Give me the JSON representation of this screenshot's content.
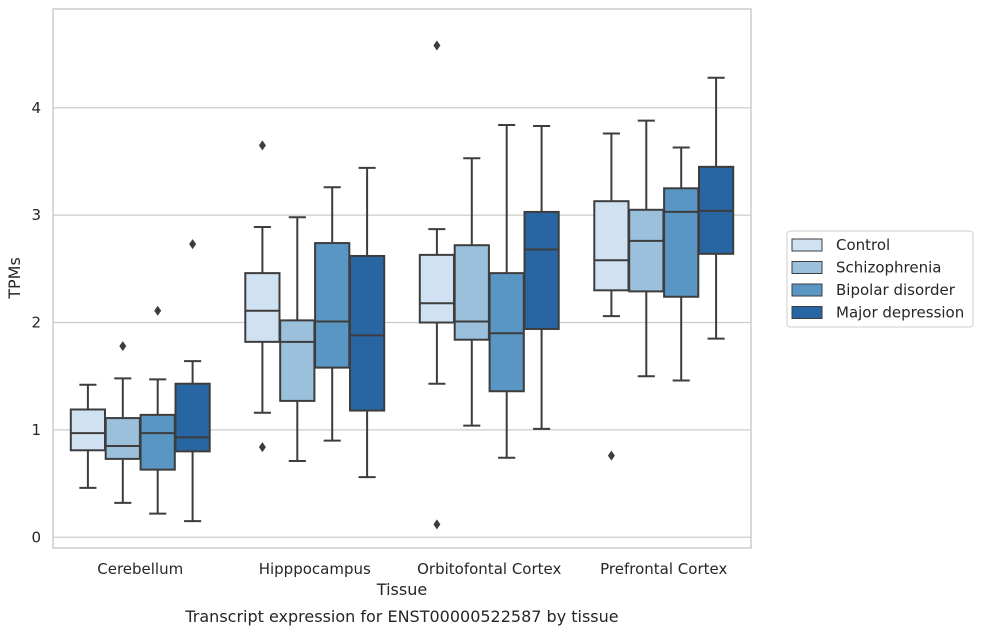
{
  "chart_data": {
    "type": "box",
    "caption": "Transcript expression for ENST00000522587 by tissue",
    "xlabel": "Tissue",
    "ylabel": "TPMs",
    "ylim": [
      -0.1,
      4.92
    ],
    "yticks": [
      0,
      1,
      2,
      3,
      4
    ],
    "grid": "horizontal",
    "legend_position": "right",
    "categories": [
      "Cerebellum",
      "Hipppocampus",
      "Orbitofontal Cortex",
      "Prefrontal Cortex"
    ],
    "series": [
      {
        "name": "Control",
        "color": "#d0e1f2",
        "boxes": [
          {
            "whislo": 0.46,
            "q1": 0.81,
            "med": 0.97,
            "q3": 1.19,
            "whishi": 1.42,
            "fliers": []
          },
          {
            "whislo": 1.16,
            "q1": 1.82,
            "med": 2.11,
            "q3": 2.46,
            "whishi": 2.89,
            "fliers": [
              3.65,
              0.84
            ]
          },
          {
            "whislo": 1.43,
            "q1": 2.0,
            "med": 2.18,
            "q3": 2.63,
            "whishi": 2.87,
            "fliers": [
              4.58,
              0.12
            ]
          },
          {
            "whislo": 2.06,
            "q1": 2.3,
            "med": 2.58,
            "q3": 3.13,
            "whishi": 3.76,
            "fliers": [
              0.76
            ]
          }
        ]
      },
      {
        "name": "Schizophrenia",
        "color": "#9ac0dc",
        "boxes": [
          {
            "whislo": 0.32,
            "q1": 0.73,
            "med": 0.85,
            "q3": 1.11,
            "whishi": 1.48,
            "fliers": [
              1.78
            ]
          },
          {
            "whislo": 0.71,
            "q1": 1.27,
            "med": 1.82,
            "q3": 2.02,
            "whishi": 2.98,
            "fliers": []
          },
          {
            "whislo": 1.04,
            "q1": 1.84,
            "med": 2.01,
            "q3": 2.72,
            "whishi": 3.53,
            "fliers": []
          },
          {
            "whislo": 1.5,
            "q1": 2.29,
            "med": 2.76,
            "q3": 3.05,
            "whishi": 3.88,
            "fliers": []
          }
        ]
      },
      {
        "name": "Bipolar disorder",
        "color": "#5a96c4",
        "boxes": [
          {
            "whislo": 0.22,
            "q1": 0.63,
            "med": 0.97,
            "q3": 1.14,
            "whishi": 1.47,
            "fliers": [
              2.11
            ]
          },
          {
            "whislo": 0.9,
            "q1": 1.58,
            "med": 2.01,
            "q3": 2.74,
            "whishi": 3.26,
            "fliers": []
          },
          {
            "whislo": 0.74,
            "q1": 1.36,
            "med": 1.9,
            "q3": 2.46,
            "whishi": 3.84,
            "fliers": []
          },
          {
            "whislo": 1.46,
            "q1": 2.24,
            "med": 3.03,
            "q3": 3.25,
            "whishi": 3.63,
            "fliers": []
          }
        ]
      },
      {
        "name": "Major depression",
        "color": "#2866a3",
        "boxes": [
          {
            "whislo": 0.15,
            "q1": 0.8,
            "med": 0.93,
            "q3": 1.43,
            "whishi": 1.64,
            "fliers": [
              2.73
            ]
          },
          {
            "whislo": 0.56,
            "q1": 1.18,
            "med": 1.88,
            "q3": 2.62,
            "whishi": 3.44,
            "fliers": []
          },
          {
            "whislo": 1.01,
            "q1": 1.94,
            "med": 2.68,
            "q3": 3.03,
            "whishi": 3.83,
            "fliers": []
          },
          {
            "whislo": 1.85,
            "q1": 2.64,
            "med": 3.04,
            "q3": 3.45,
            "whishi": 4.28,
            "fliers": []
          }
        ]
      }
    ]
  }
}
